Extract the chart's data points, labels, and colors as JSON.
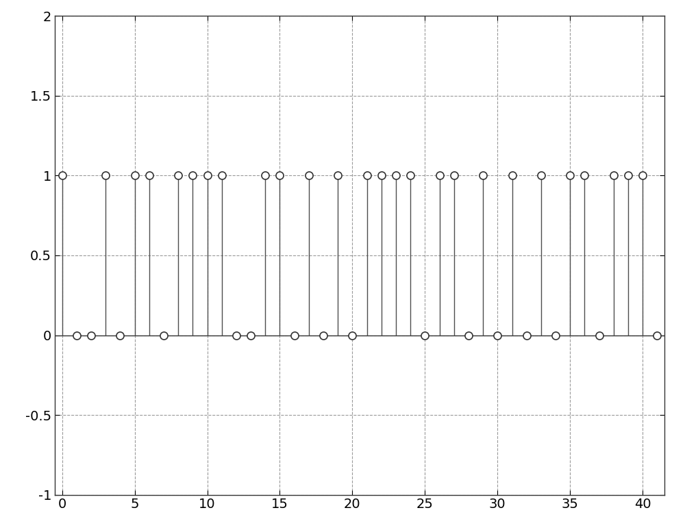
{
  "values": [
    1,
    0,
    0,
    1,
    0,
    1,
    1,
    0,
    1,
    1,
    1,
    1,
    0,
    0,
    1,
    1,
    0,
    1,
    0,
    1,
    0,
    1,
    1,
    1,
    1,
    0,
    1,
    1,
    0,
    1,
    0,
    1,
    0,
    1,
    0,
    1,
    1,
    0,
    1,
    1,
    1,
    0
  ],
  "xlim": [
    -0.5,
    41.5
  ],
  "ylim": [
    -1,
    2
  ],
  "xticks": [
    0,
    5,
    10,
    15,
    20,
    25,
    30,
    35,
    40
  ],
  "yticks": [
    -1,
    -0.5,
    0,
    0.5,
    1,
    1.5,
    2
  ],
  "ytick_labels": [
    "-1",
    "-0.5",
    "0",
    "0.5",
    "1",
    "1.5",
    "2"
  ],
  "grid_color": "#888888",
  "stem_line_color": "#4d4d4d",
  "baseline_color": "#333333",
  "marker_facecolor": "white",
  "marker_edgecolor": "#333333",
  "background_color": "#ffffff",
  "figsize": [
    10.0,
    7.77
  ],
  "dpi": 100,
  "tick_fontsize": 14,
  "stem_linewidth": 1.0,
  "marker_size": 8,
  "marker_linewidth": 1.2,
  "baseline_linewidth": 1.0
}
